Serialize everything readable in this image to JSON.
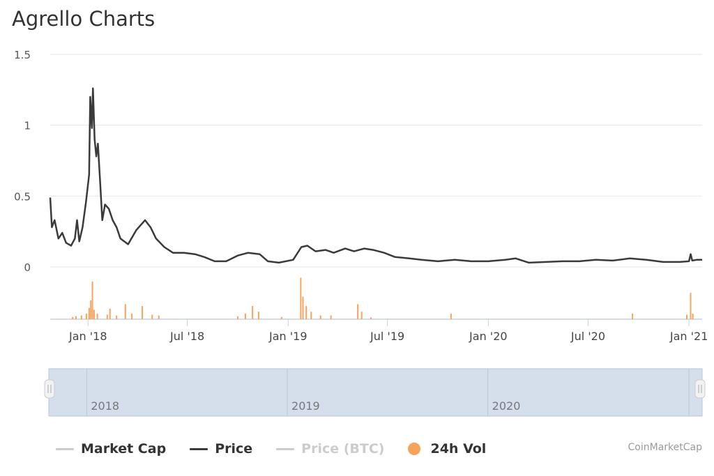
{
  "title": "Agrello Charts",
  "credit": "CoinMarketCap",
  "colors": {
    "price": "#3a3a3a",
    "volume": "#f7a35c",
    "grid": "#e6e6e6",
    "navigator_fill": "#d5dfec",
    "muted": "#cccccc"
  },
  "legend": [
    {
      "label": "Market Cap",
      "symbol": "line",
      "color": "#cccccc",
      "text_color": "#333333"
    },
    {
      "label": "Price",
      "symbol": "line",
      "color": "#3a3a3a",
      "text_color": "#333333"
    },
    {
      "label": "Price (BTC)",
      "symbol": "line",
      "color": "#cccccc",
      "text_color": "#cccccc"
    },
    {
      "label": "24h Vol",
      "symbol": "dot",
      "color": "#f7a35c",
      "text_color": "#333333"
    }
  ],
  "chart_data": {
    "type": "line",
    "y_axis": {
      "ticks": [
        "1.5",
        "1",
        "0.5",
        "0"
      ],
      "ylim": [
        0,
        1.5
      ],
      "grid": true
    },
    "x_axis": {
      "ticks": [
        {
          "label": "Jan '18",
          "date": "2018-01-01"
        },
        {
          "label": "Jul '18",
          "date": "2018-07-01"
        },
        {
          "label": "Jan '19",
          "date": "2019-01-01"
        },
        {
          "label": "Jul '19",
          "date": "2019-07-01"
        },
        {
          "label": "Jan '20",
          "date": "2020-01-01"
        },
        {
          "label": "Jul '20",
          "date": "2020-07-01"
        },
        {
          "label": "Jan '21",
          "date": "2021-01-01"
        }
      ],
      "range": [
        "2017-10-24",
        "2021-01-25"
      ]
    },
    "series": [
      {
        "name": "Price",
        "points": [
          [
            "2017-10-24",
            0.49
          ],
          [
            "2017-10-27",
            0.28
          ],
          [
            "2017-11-01",
            0.33
          ],
          [
            "2017-11-08",
            0.2
          ],
          [
            "2017-11-15",
            0.24
          ],
          [
            "2017-11-22",
            0.17
          ],
          [
            "2017-12-01",
            0.15
          ],
          [
            "2017-12-08",
            0.2
          ],
          [
            "2017-12-12",
            0.33
          ],
          [
            "2017-12-16",
            0.18
          ],
          [
            "2017-12-22",
            0.28
          ],
          [
            "2017-12-28",
            0.45
          ],
          [
            "2018-01-03",
            0.65
          ],
          [
            "2018-01-05",
            1.2
          ],
          [
            "2018-01-08",
            0.98
          ],
          [
            "2018-01-10",
            1.26
          ],
          [
            "2018-01-13",
            0.9
          ],
          [
            "2018-01-16",
            0.78
          ],
          [
            "2018-01-19",
            0.87
          ],
          [
            "2018-01-23",
            0.6
          ],
          [
            "2018-01-27",
            0.33
          ],
          [
            "2018-02-01",
            0.44
          ],
          [
            "2018-02-08",
            0.41
          ],
          [
            "2018-02-15",
            0.33
          ],
          [
            "2018-02-22",
            0.28
          ],
          [
            "2018-03-01",
            0.2
          ],
          [
            "2018-03-15",
            0.16
          ],
          [
            "2018-03-30",
            0.26
          ],
          [
            "2018-04-15",
            0.33
          ],
          [
            "2018-04-25",
            0.28
          ],
          [
            "2018-05-05",
            0.2
          ],
          [
            "2018-05-20",
            0.14
          ],
          [
            "2018-06-05",
            0.1
          ],
          [
            "2018-06-25",
            0.1
          ],
          [
            "2018-07-15",
            0.09
          ],
          [
            "2018-08-01",
            0.07
          ],
          [
            "2018-08-20",
            0.04
          ],
          [
            "2018-09-10",
            0.04
          ],
          [
            "2018-10-01",
            0.08
          ],
          [
            "2018-10-20",
            0.1
          ],
          [
            "2018-11-10",
            0.09
          ],
          [
            "2018-11-25",
            0.04
          ],
          [
            "2018-12-15",
            0.03
          ],
          [
            "2019-01-10",
            0.05
          ],
          [
            "2019-01-25",
            0.14
          ],
          [
            "2019-02-05",
            0.15
          ],
          [
            "2019-02-20",
            0.11
          ],
          [
            "2019-03-10",
            0.12
          ],
          [
            "2019-03-25",
            0.1
          ],
          [
            "2019-04-15",
            0.13
          ],
          [
            "2019-05-01",
            0.11
          ],
          [
            "2019-05-20",
            0.13
          ],
          [
            "2019-06-05",
            0.12
          ],
          [
            "2019-06-25",
            0.1
          ],
          [
            "2019-07-15",
            0.07
          ],
          [
            "2019-08-10",
            0.06
          ],
          [
            "2019-09-01",
            0.05
          ],
          [
            "2019-10-01",
            0.04
          ],
          [
            "2019-11-01",
            0.05
          ],
          [
            "2019-12-01",
            0.04
          ],
          [
            "2020-01-01",
            0.04
          ],
          [
            "2020-02-01",
            0.05
          ],
          [
            "2020-02-20",
            0.06
          ],
          [
            "2020-03-15",
            0.03
          ],
          [
            "2020-04-15",
            0.035
          ],
          [
            "2020-05-15",
            0.04
          ],
          [
            "2020-06-15",
            0.04
          ],
          [
            "2020-07-15",
            0.05
          ],
          [
            "2020-08-15",
            0.045
          ],
          [
            "2020-09-15",
            0.06
          ],
          [
            "2020-10-15",
            0.05
          ],
          [
            "2020-11-15",
            0.035
          ],
          [
            "2020-12-15",
            0.035
          ],
          [
            "2021-01-01",
            0.04
          ],
          [
            "2021-01-04",
            0.09
          ],
          [
            "2021-01-07",
            0.045
          ],
          [
            "2021-01-15",
            0.05
          ],
          [
            "2021-01-25",
            0.05
          ]
        ]
      },
      {
        "name": "24h Vol",
        "type": "bar",
        "bars": [
          [
            "2017-12-04",
            0.06
          ],
          [
            "2017-12-10",
            0.08
          ],
          [
            "2017-12-20",
            0.1
          ],
          [
            "2017-12-29",
            0.15
          ],
          [
            "2018-01-03",
            0.3
          ],
          [
            "2018-01-06",
            0.5
          ],
          [
            "2018-01-09",
            1.0
          ],
          [
            "2018-01-12",
            0.25
          ],
          [
            "2018-01-18",
            0.15
          ],
          [
            "2018-02-05",
            0.12
          ],
          [
            "2018-02-10",
            0.28
          ],
          [
            "2018-02-22",
            0.1
          ],
          [
            "2018-03-10",
            0.4
          ],
          [
            "2018-03-22",
            0.15
          ],
          [
            "2018-04-10",
            0.35
          ],
          [
            "2018-04-28",
            0.12
          ],
          [
            "2018-05-10",
            0.1
          ],
          [
            "2018-10-01",
            0.08
          ],
          [
            "2018-10-15",
            0.15
          ],
          [
            "2018-10-28",
            0.35
          ],
          [
            "2018-11-08",
            0.2
          ],
          [
            "2018-12-20",
            0.06
          ],
          [
            "2019-01-24",
            1.1
          ],
          [
            "2019-01-28",
            0.6
          ],
          [
            "2019-02-03",
            0.35
          ],
          [
            "2019-02-12",
            0.2
          ],
          [
            "2019-03-01",
            0.1
          ],
          [
            "2019-03-20",
            0.1
          ],
          [
            "2019-05-08",
            0.4
          ],
          [
            "2019-05-15",
            0.2
          ],
          [
            "2019-06-01",
            0.05
          ],
          [
            "2019-10-25",
            0.15
          ],
          [
            "2020-09-20",
            0.15
          ],
          [
            "2020-12-28",
            0.12
          ],
          [
            "2021-01-04",
            0.7
          ],
          [
            "2021-01-08",
            0.15
          ]
        ]
      }
    ],
    "navigator": {
      "labels": [
        "2018",
        "2019",
        "2020"
      ]
    }
  }
}
